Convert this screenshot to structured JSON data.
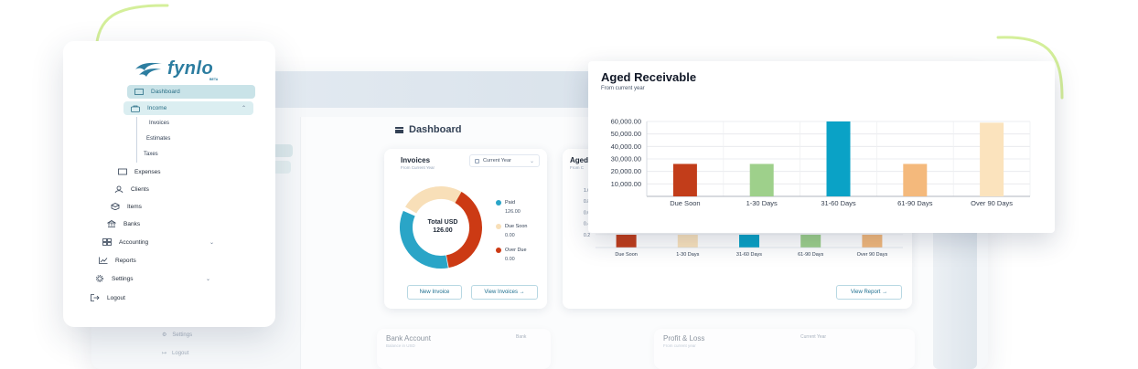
{
  "brand": {
    "name": "fynlo",
    "tag": "BETA",
    "accent": "#2c7da0"
  },
  "dashboard": {
    "title": "Dashboard"
  },
  "sidebar": {
    "items": [
      {
        "label": "Dashboard",
        "icon": "dashboard-icon",
        "state": "active"
      },
      {
        "label": "Income",
        "icon": "income-icon",
        "state": "open"
      },
      {
        "label": "Expenses",
        "icon": "expenses-icon"
      },
      {
        "label": "Clients",
        "icon": "clients-icon"
      },
      {
        "label": "Items",
        "icon": "items-icon"
      },
      {
        "label": "Banks",
        "icon": "banks-icon"
      },
      {
        "label": "Accounting",
        "icon": "accounting-icon"
      },
      {
        "label": "Reports",
        "icon": "reports-icon"
      },
      {
        "label": "Settings",
        "icon": "settings-icon"
      },
      {
        "label": "Logout",
        "icon": "logout-icon"
      }
    ],
    "income_sub": [
      "Invoices",
      "Estimates",
      "Taxes"
    ]
  },
  "ghost_menu": {
    "settings": "Settings",
    "logout": "Logout"
  },
  "invoices_card": {
    "title": "Invoices",
    "subtitle": "From Current Year",
    "period": "Current Year",
    "total_label": "Total USD",
    "total_value": "126.00",
    "legend": [
      {
        "label": "Paid",
        "value": "126.00",
        "color": "#2aa5c7"
      },
      {
        "label": "Due Soon",
        "value": "0.00",
        "color": "#f8dfb8"
      },
      {
        "label": "Over Due",
        "value": "0.00",
        "color": "#cc3a14"
      }
    ],
    "new_invoice": "New Invoice",
    "view_invoices": "View Invoices →"
  },
  "aged_back": {
    "title": "Aged",
    "subtitle": "From C",
    "view_report": "View Report →"
  },
  "bottom": {
    "bank_title": "Bank Account",
    "bank_sub": "Balance in USD",
    "bank_select": "Bank",
    "pl_title": "Profit & Loss",
    "pl_sub": "From current year",
    "pl_select": "Current Year"
  },
  "chart_data": [
    {
      "type": "bar",
      "title": "Aged Receivable",
      "subtitle": "From current year",
      "categories": [
        "Due Soon",
        "1-30 Days",
        "31-60 Days",
        "61-90 Days",
        "Over 90 Days"
      ],
      "values": [
        26000,
        26000,
        60000,
        26000,
        59000
      ],
      "colors": [
        "#c23d1a",
        "#9ed08b",
        "#0aa2c6",
        "#f4b97c",
        "#fbe3bd"
      ],
      "yticks": [
        "10,000.00",
        "20,000.00",
        "30,000.00",
        "40,000.00",
        "50,000.00",
        "60,000.00"
      ],
      "ylim": [
        0,
        60000
      ],
      "grid": true
    },
    {
      "type": "bar",
      "categories": [
        "Due Soon",
        "1-30 Days",
        "31-60 Days",
        "61-90 Days",
        "Over 90 Days"
      ],
      "yticks": [
        "0.2",
        "0.4",
        "0.6",
        "0.8",
        "1.0"
      ],
      "colors": [
        "#c23d1a",
        "#fbe3bd",
        "#0aa2c6",
        "#9ed08b",
        "#f4b97c"
      ]
    }
  ]
}
